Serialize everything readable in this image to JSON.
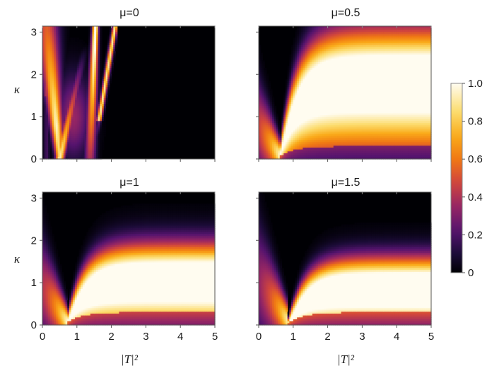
{
  "chart_data": {
    "type": "heatmap",
    "colormap": "inferno-like (black → purple → orange → white)",
    "panels": [
      {
        "title": "μ=0",
        "mu": 0,
        "xlabel": "",
        "ylabel": "κ",
        "xlim": [
          0,
          5
        ],
        "ylim": [
          0,
          3.14
        ],
        "x_ticks": [
          "0",
          "1",
          "2",
          "3",
          "4",
          "5"
        ],
        "y_ticks": [
          "0",
          "1",
          "2",
          "3"
        ],
        "show_x_tick_labels": false,
        "show_y_tick_labels": true,
        "features": {
          "nonzero_region_x": [
            0,
            2.1
          ],
          "bright_ridge_from_x0": 0.5,
          "vertical_ridge_x": 1.4,
          "dark_beyond_x": 2.1
        }
      },
      {
        "title": "μ=0.5",
        "mu": 0.5,
        "xlabel": "",
        "ylabel": "",
        "xlim": [
          0,
          5
        ],
        "ylim": [
          0,
          3.14
        ],
        "x_ticks": [
          "0",
          "1",
          "2",
          "3",
          "4",
          "5"
        ],
        "y_ticks": [
          "0",
          "1",
          "2",
          "3"
        ],
        "show_x_tick_labels": false,
        "show_y_tick_labels": false,
        "features": {
          "cusp_x": 0.6,
          "bright_band_kappa": 1.4,
          "band_width": 1.0
        }
      },
      {
        "title": "μ=1",
        "mu": 1,
        "xlabel": "|T|²",
        "ylabel": "κ",
        "xlim": [
          0,
          5
        ],
        "ylim": [
          0,
          3.14
        ],
        "x_ticks": [
          "0",
          "1",
          "2",
          "3",
          "4",
          "5"
        ],
        "y_ticks": [
          "0",
          "1",
          "2",
          "3"
        ],
        "show_x_tick_labels": true,
        "show_y_tick_labels": true,
        "features": {
          "cusp_x": 0.7,
          "bright_band_kappa": 0.75,
          "band_width": 0.7
        }
      },
      {
        "title": "μ=1.5",
        "mu": 1.5,
        "xlabel": "|T|²",
        "ylabel": "",
        "xlim": [
          0,
          5
        ],
        "ylim": [
          0,
          3.14
        ],
        "x_ticks": [
          "0",
          "1",
          "2",
          "3",
          "4",
          "5"
        ],
        "y_ticks": [
          "0",
          "1",
          "2",
          "3"
        ],
        "show_x_tick_labels": true,
        "show_y_tick_labels": false,
        "features": {
          "cusp_x": 0.85,
          "bright_band_kappa": 0.6,
          "band_width": 0.6
        }
      }
    ],
    "colorbar": {
      "range": [
        0,
        1.0
      ],
      "ticks": [
        "0",
        "0.2",
        "0.4",
        "0.6",
        "0.8",
        "1.0"
      ],
      "tick_values": [
        0,
        0.2,
        0.4,
        0.6,
        0.8,
        1.0
      ]
    },
    "legend_placement": "right",
    "grid": false
  }
}
